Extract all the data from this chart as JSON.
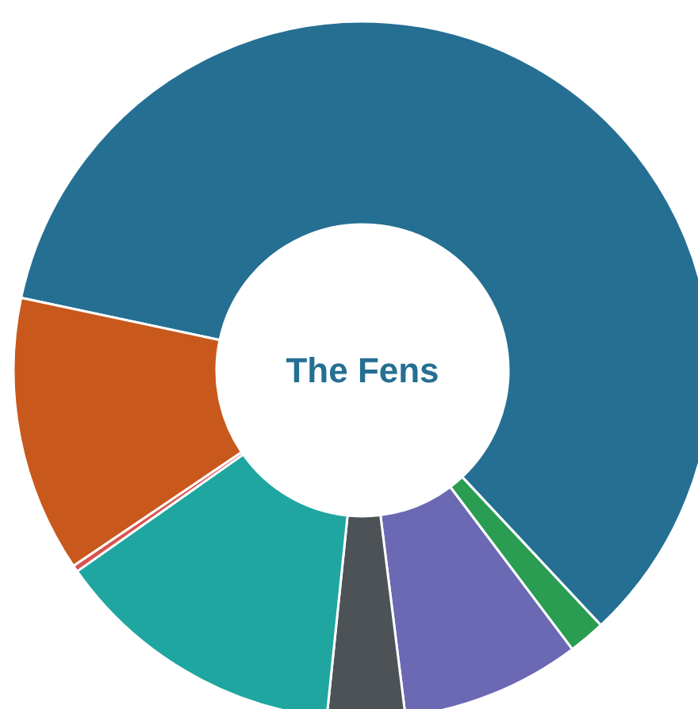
{
  "chart_data": {
    "type": "donut",
    "title": "The Fens",
    "categories": [
      null,
      null,
      null,
      null,
      null,
      null,
      null
    ],
    "values": [
      59.7,
      1.7,
      8.3,
      3.6,
      13.6,
      0.3,
      12.8
    ],
    "colors": [
      "#256f93",
      "#2a9d52",
      "#6b68b4",
      "#4d5257",
      "#1fa6a0",
      "#d9534f",
      "#c9581c"
    ]
  }
}
